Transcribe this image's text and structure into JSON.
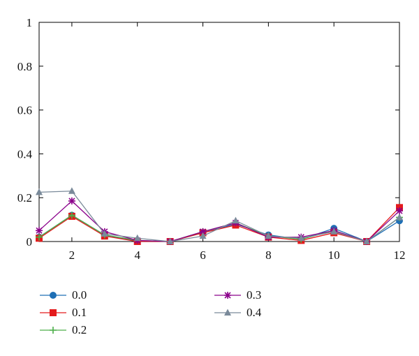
{
  "chart_data": {
    "type": "line",
    "title": "",
    "xlabel": "",
    "ylabel": "",
    "x": [
      1,
      2,
      3,
      4,
      5,
      6,
      7,
      8,
      9,
      10,
      11,
      12
    ],
    "xlim": [
      1,
      12
    ],
    "ylim": [
      0,
      1
    ],
    "xticks": [
      2,
      4,
      6,
      8,
      10,
      12
    ],
    "xtick_labels": [
      "2",
      "4",
      "6",
      "8",
      "10",
      "12"
    ],
    "yticks": [
      0,
      0.2,
      0.4,
      0.6,
      0.8,
      1
    ],
    "ytick_labels": [
      "0",
      "0.2",
      "0.4",
      "0.6",
      "0.8",
      "1"
    ],
    "grid": false,
    "legend_position": "bottom-left",
    "series": [
      {
        "name": "0.0",
        "color": "#1f6fb5",
        "marker": "circle",
        "values": [
          0.02,
          0.12,
          0.03,
          0.0,
          0.0,
          0.04,
          0.08,
          0.03,
          0.01,
          0.06,
          0.0,
          0.095
        ]
      },
      {
        "name": "0.1",
        "color": "#e41a1c",
        "marker": "square",
        "values": [
          0.015,
          0.115,
          0.025,
          0.0,
          0.0,
          0.04,
          0.075,
          0.02,
          0.005,
          0.04,
          0.0,
          0.155
        ]
      },
      {
        "name": "0.2",
        "color": "#4daf4a",
        "marker": "plus",
        "values": [
          0.02,
          0.12,
          0.03,
          0.005,
          0.0,
          0.045,
          0.085,
          0.025,
          0.01,
          0.05,
          0.0,
          0.11
        ]
      },
      {
        "name": "0.3",
        "color": "#8b008b",
        "marker": "star",
        "values": [
          0.05,
          0.185,
          0.045,
          0.005,
          0.0,
          0.045,
          0.085,
          0.02,
          0.02,
          0.05,
          0.0,
          0.14
        ]
      },
      {
        "name": "0.4",
        "color": "#7a8a9a",
        "marker": "triangle",
        "values": [
          0.225,
          0.23,
          0.035,
          0.015,
          0.0,
          0.025,
          0.095,
          0.025,
          0.015,
          0.045,
          0.0,
          0.11
        ]
      }
    ]
  }
}
